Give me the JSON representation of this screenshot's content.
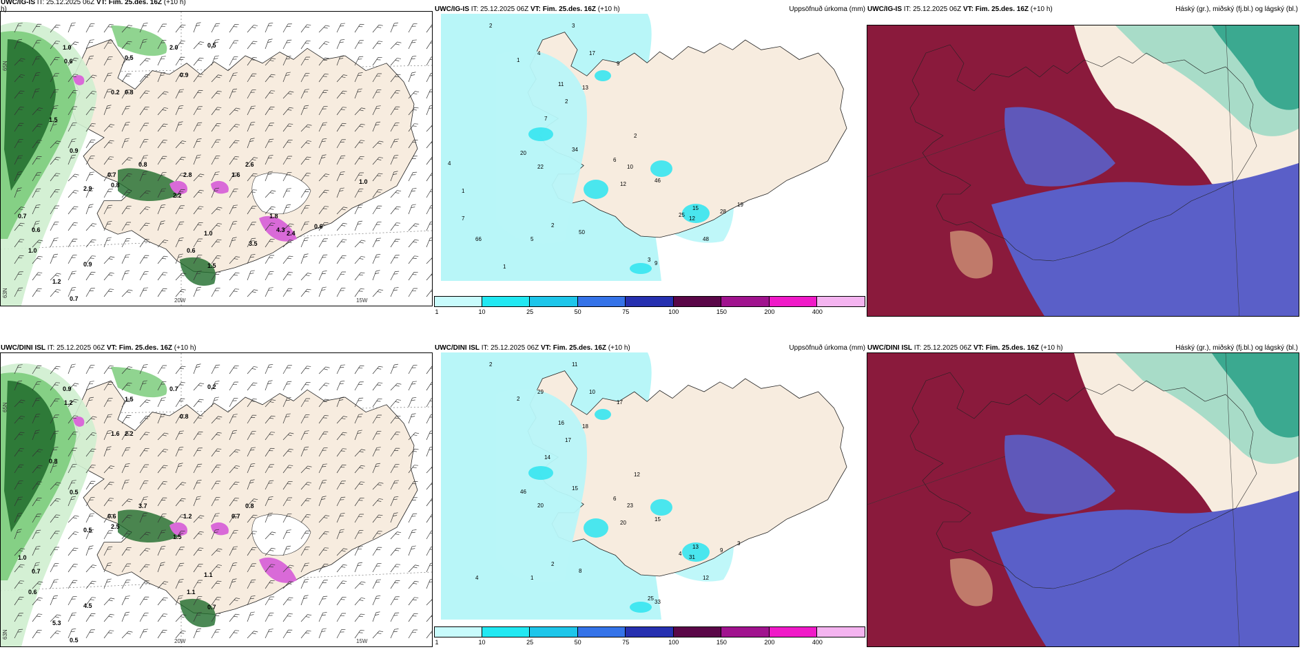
{
  "colors": {
    "land": "#f7ecdf",
    "green_light": "#cfeecf",
    "green_mid": "#7ccc7c",
    "green_dark": "#1e6b2a",
    "magenta": "#d96ad8",
    "cyan_light": "#b8f6f8",
    "cyan": "#36e6f0",
    "high": "#2fa38a",
    "mid": "#5a5fc8",
    "low": "#8a1a3c",
    "panel_bg": "#ffffff"
  },
  "rows": [
    {
      "model_label": "UWC/IG-IS",
      "wind_panel": {
        "title_left_model": "UWC/IG-IS",
        "title_left_rest": "IT: 25.12.2025 06Z",
        "vt_label": "VT:",
        "vt_value": "Fim. 25.des. 16Z",
        "lead": "(+10 h)",
        "title_second_line": "h)",
        "axis_lat": "65N",
        "axis_lat2": "63N",
        "axis_lon1": "20W",
        "axis_lon2": "15W",
        "values": [
          "1.0",
          "0.6",
          "0.5",
          "2.0",
          "0.5",
          "0.9",
          "0.2",
          "0.8",
          "1.5",
          "0.9",
          "0.7",
          "0.8",
          "0.8",
          "2.2",
          "2.8",
          "1.6",
          "2.6",
          "2.9",
          "0.6",
          "0.7",
          "1.0",
          "0.9",
          "1.2",
          "0.7",
          "0.6",
          "1.0",
          "1.5",
          "3.5",
          "1.0",
          "0.6",
          "4.3",
          "1.8",
          "2.4"
        ]
      },
      "precip_panel": {
        "model": "UWC/IG-IS",
        "run": "IT: 25.12.2025 06Z",
        "vt_label": "VT:",
        "vt_value": "Fim. 25.des. 16Z",
        "lead": "(+10 h)",
        "right_title": "Uppsöfnuð úrkoma (mm)",
        "values": [
          "2",
          "3",
          "17",
          "9",
          "1",
          "4",
          "11",
          "13",
          "2",
          "7",
          "20",
          "34",
          "22",
          "2",
          "6",
          "10",
          "12",
          "46",
          "15",
          "12",
          "25",
          "28",
          "19",
          "48",
          "3",
          "9",
          "5",
          "2",
          "50",
          "66",
          "1",
          "4",
          "7",
          "1"
        ]
      },
      "cloud_panel": {
        "model": "UWC/IG-IS",
        "run": "IT: 25.12.2025 06Z",
        "vt_label": "VT:",
        "vt_value": "Fim. 25.des. 16Z",
        "lead": "(+10 h)",
        "right_title": "Háský (gr.), miðský (fj.bl.) og lágský (bl.)"
      }
    },
    {
      "model_label": "UWC/DINI ISL",
      "wind_panel": {
        "title_left_model": "UWC/DINI ISL",
        "title_left_rest": "IT: 25.12.2025 06Z",
        "vt_label": "VT:",
        "vt_value": "Fim. 25.des. 16Z",
        "lead": "(+10 h)",
        "axis_lat": "65N",
        "axis_lat2": "63N",
        "axis_lon1": "20W",
        "axis_lon2": "15W",
        "values": [
          "0.9",
          "1.2",
          "1.5",
          "0.7",
          "0.2",
          "0.8",
          "1.6",
          "2.2",
          "0.8",
          "0.5",
          "0.6",
          "2.5",
          "3.7",
          "1.5",
          "1.2",
          "0.7",
          "0.8",
          "0.5",
          "0.7",
          "1.0",
          "0.6",
          "4.5",
          "5.3",
          "0.5",
          "1.1",
          "1.1",
          "0.7"
        ]
      },
      "precip_panel": {
        "model": "UWC/DINI ISL",
        "run": "IT: 25.12.2025 06Z",
        "vt_label": "VT:",
        "vt_value": "Fim. 25.des. 16Z",
        "lead": "(+10 h)",
        "right_title": "Uppsöfnuð úrkoma (mm)",
        "values": [
          "2",
          "11",
          "10",
          "17",
          "2",
          "29",
          "16",
          "18",
          "17",
          "14",
          "46",
          "15",
          "20",
          "12",
          "6",
          "23",
          "20",
          "15",
          "13",
          "31",
          "4",
          "9",
          "3",
          "12",
          "25",
          "33",
          "1",
          "2",
          "8",
          "4"
        ]
      },
      "cloud_panel": {
        "model": "UWC/DINI ISL",
        "run": "IT: 25.12.2025 06Z",
        "vt_label": "VT:",
        "vt_value": "Fim. 25.des. 16Z",
        "lead": "(+10 h)",
        "right_title": "Háský (gr.), miðský (fj.bl.) og lágský (bl.)"
      }
    }
  ],
  "colorbar": {
    "ticks": [
      "1",
      "10",
      "25",
      "50",
      "75",
      "100",
      "150",
      "200",
      "400"
    ],
    "colors": [
      "#c8fbfc",
      "#22e8f2",
      "#1ec6ea",
      "#3573e8",
      "#2630b0",
      "#5a0748",
      "#a0138e",
      "#f01ac8",
      "#f4b4f0"
    ]
  }
}
